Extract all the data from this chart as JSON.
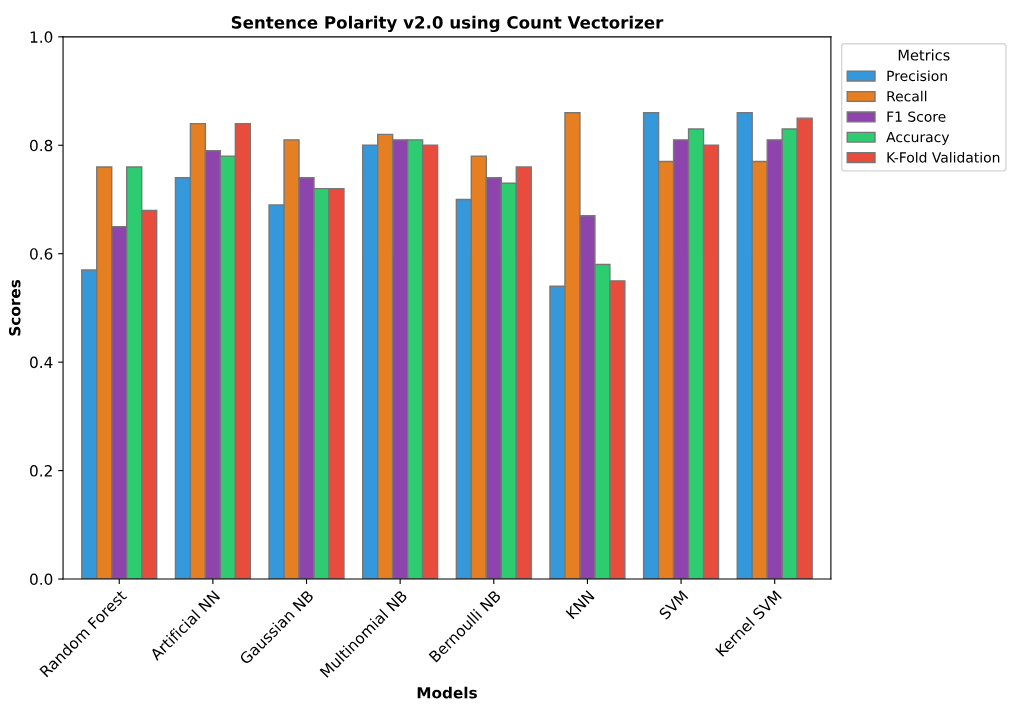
{
  "chart_data": {
    "type": "bar",
    "title": "Sentence Polarity v2.0 using Count Vectorizer",
    "xlabel": "Models",
    "ylabel": "Scores",
    "legend_title": "Metrics",
    "categories": [
      "Random Forest",
      "Artificial NN",
      "Gaussian NB",
      "Multinomial NB",
      "Bernoulli NB",
      "KNN",
      "SVM",
      "Kernel SVM"
    ],
    "series": [
      {
        "name": "Precision",
        "color": "#3498db",
        "values": [
          0.57,
          0.74,
          0.69,
          0.8,
          0.7,
          0.54,
          0.86,
          0.86
        ]
      },
      {
        "name": "Recall",
        "color": "#e67e22",
        "values": [
          0.76,
          0.84,
          0.81,
          0.82,
          0.78,
          0.86,
          0.77,
          0.77
        ]
      },
      {
        "name": "F1 Score",
        "color": "#8e44ad",
        "values": [
          0.65,
          0.79,
          0.74,
          0.81,
          0.74,
          0.67,
          0.81,
          0.81
        ]
      },
      {
        "name": "Accuracy",
        "color": "#2ecc71",
        "values": [
          0.76,
          0.78,
          0.72,
          0.81,
          0.73,
          0.58,
          0.83,
          0.83
        ]
      },
      {
        "name": "K-Fold Validation",
        "color": "#e74c3c",
        "values": [
          0.68,
          0.84,
          0.72,
          0.8,
          0.76,
          0.55,
          0.8,
          0.85
        ]
      }
    ],
    "ylim": [
      0,
      1.0
    ],
    "yticks": [
      {
        "value": 0,
        "label": "0.0"
      },
      {
        "value": 0.2,
        "label": "0.2"
      },
      {
        "value": 0.4,
        "label": "0.4"
      },
      {
        "value": 0.6,
        "label": "0.6"
      },
      {
        "value": 0.8,
        "label": "0.8"
      },
      {
        "value": 1.0,
        "label": "1.0"
      }
    ],
    "grid": false,
    "legend": "top right"
  }
}
